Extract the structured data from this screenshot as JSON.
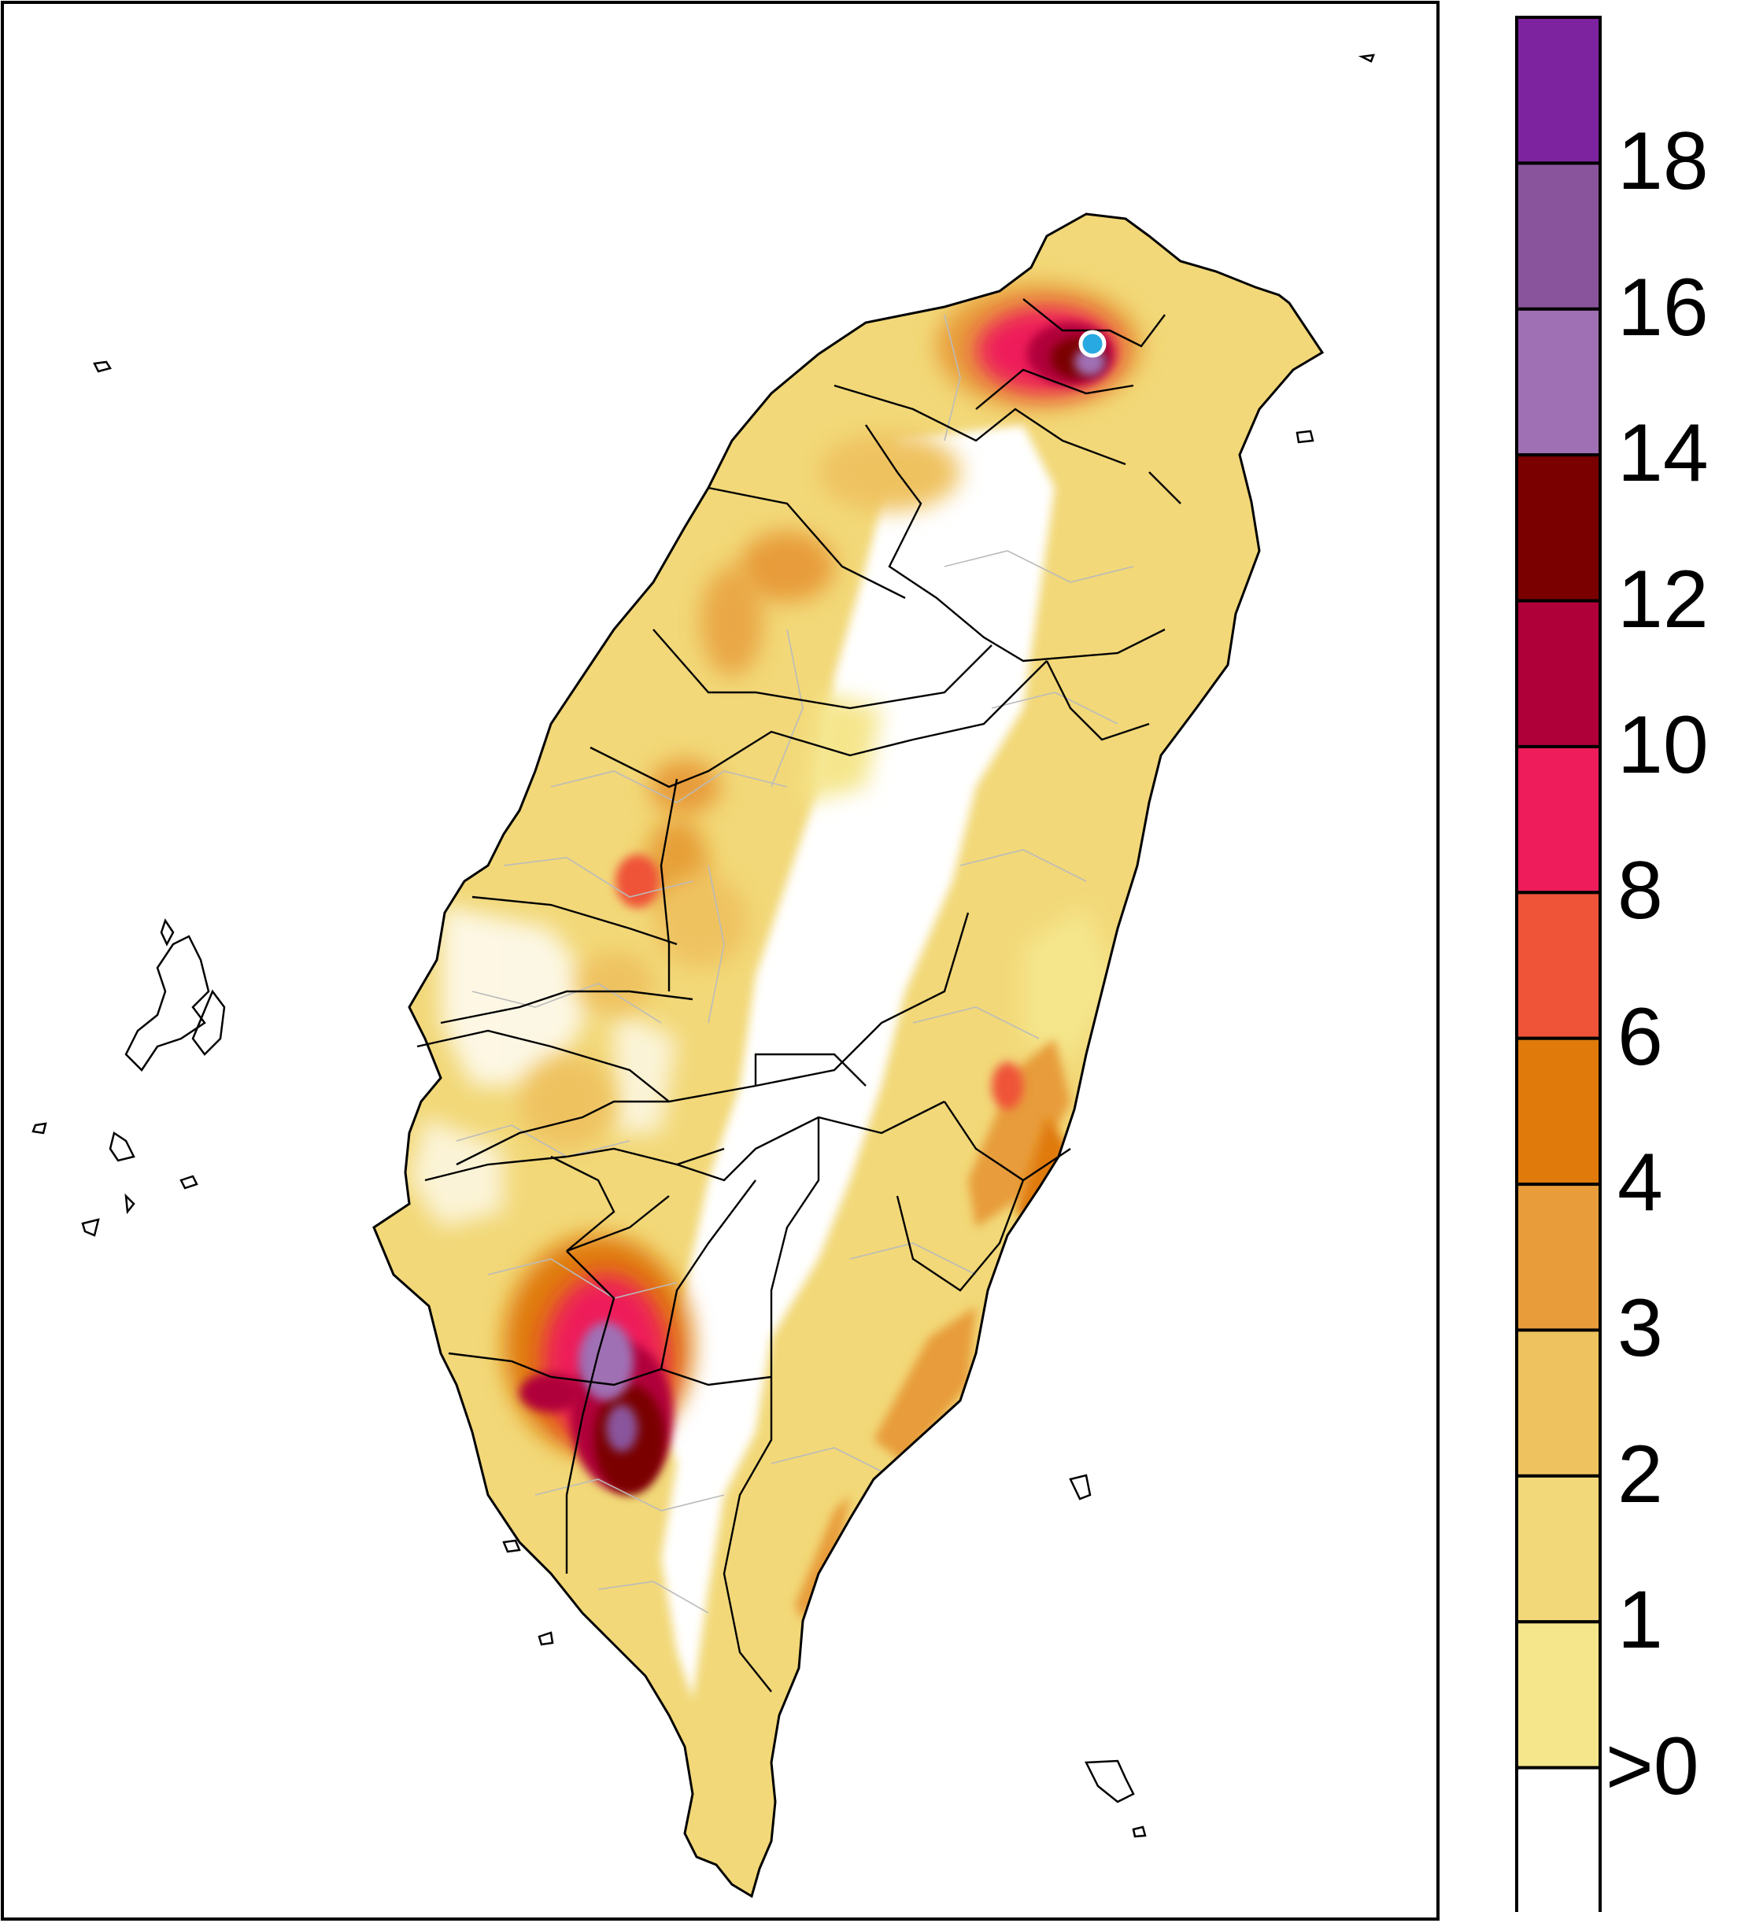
{
  "legend": {
    "levels": [
      {
        "label": ">0",
        "color": "#ffffff"
      },
      {
        "label": "1",
        "color": "#f5e68c"
      },
      {
        "label": "2",
        "color": "#f2d878"
      },
      {
        "label": "3",
        "color": "#efc260"
      },
      {
        "label": "4",
        "color": "#e89c3a"
      },
      {
        "label": "6",
        "color": "#e07a0a"
      },
      {
        "label": "8",
        "color": "#ef5338"
      },
      {
        "label": "10",
        "color": "#ee1c5a"
      },
      {
        "label": "12",
        "color": "#b0003a"
      },
      {
        "label": "14",
        "color": "#7a0000"
      },
      {
        "label": "16",
        "color": "#a070b4"
      },
      {
        "label": "18",
        "color": "#8a549c"
      },
      {
        "label": "",
        "color": "#7e23a0"
      }
    ],
    "boundary_labels": [
      "18",
      "16",
      "14",
      "12",
      "10",
      "8",
      "6",
      "4",
      "3",
      "2",
      "1",
      ">0"
    ]
  },
  "map": {
    "marker_color": "#29a9e1",
    "marker": "station-dot"
  }
}
